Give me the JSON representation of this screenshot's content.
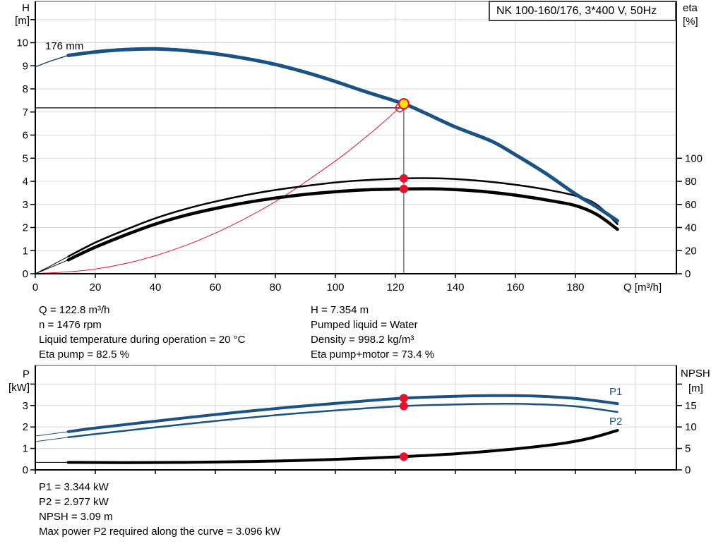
{
  "title_box": {
    "label": "NK 100-160/176, 3*400 V, 50Hz"
  },
  "info_top": {
    "left": [
      "Q = 122.8 m³/h",
      "n = 1476 rpm",
      "Liquid temperature during operation = 20 °C",
      "Eta pump = 82.5 %"
    ],
    "right": [
      "H = 7.354 m",
      "Pumped liquid = Water",
      "Density = 998.2 kg/m³",
      "Eta pump+motor = 73.4 %"
    ]
  },
  "info_bottom": [
    "P1 = 3.344 kW",
    "P2 = 2.977 kW",
    "NPSH = 3.09 m",
    "Max power P2 required along the curve = 3.096 kW"
  ],
  "colors": {
    "curve_blue": "#1b5286",
    "curve_black": "#000000",
    "curve_red": "#e8112d",
    "marker_red": "#e8112d",
    "marker_yellow": "#ffe100",
    "grid": "#d9d9d9",
    "axis": "#000000",
    "frame_top": "#a6a6a6",
    "duty_hline": "#000000",
    "duty_vline": "#555555"
  },
  "chart_data": [
    {
      "type": "line",
      "title": "NK 100-160/176, 3*400 V, 50Hz",
      "curve_label": "176 mm",
      "xlabel": "Q [m³/h]",
      "x_axis": {
        "ticks": [
          0,
          20,
          40,
          60,
          80,
          100,
          120,
          140,
          160,
          180,
          200
        ],
        "label_max": 180
      },
      "left_axis": {
        "label": "H",
        "unit": "[m]",
        "ticks": [
          0,
          1,
          2,
          3,
          4,
          5,
          6,
          7,
          8,
          9,
          10
        ],
        "unit_tick": 11,
        "range": [
          0,
          11.8
        ]
      },
      "right_axis": {
        "label": "eta",
        "unit": "[%]",
        "ticks": [
          0,
          20,
          40,
          60,
          80,
          100
        ]
      },
      "grid": true,
      "series": [
        {
          "name": "system-curve",
          "axis": "left",
          "color": "red",
          "width": 1,
          "points": [
            [
              0,
              0
            ],
            [
              20,
              0.2
            ],
            [
              40,
              0.78
            ],
            [
              60,
              1.76
            ],
            [
              80,
              3.12
            ],
            [
              100,
              4.88
            ],
            [
              110,
              5.9
            ],
            [
              116,
              6.56
            ],
            [
              122.8,
              7.354
            ]
          ]
        },
        {
          "name": "eta-pump-curve-thin",
          "axis": "right",
          "color": "black",
          "width": 1,
          "points": [
            [
              0,
              0
            ],
            [
              6,
              8
            ],
            [
              11,
              15
            ]
          ]
        },
        {
          "name": "eta-pump-motor-curve-thin",
          "axis": "right",
          "color": "black",
          "width": 1,
          "points": [
            [
              0,
              0
            ],
            [
              6,
              6.5
            ],
            [
              11,
              12
            ]
          ]
        },
        {
          "name": "eta-pump-curve",
          "axis": "right",
          "color": "black",
          "width": 2.5,
          "points": [
            [
              11,
              15
            ],
            [
              20,
              27
            ],
            [
              30,
              38
            ],
            [
              40,
              48
            ],
            [
              50,
              56
            ],
            [
              60,
              62.5
            ],
            [
              70,
              68
            ],
            [
              80,
              72.5
            ],
            [
              90,
              76
            ],
            [
              100,
              79
            ],
            [
              110,
              81
            ],
            [
              122.8,
              82.5
            ],
            [
              132,
              82.7
            ],
            [
              140,
              82
            ],
            [
              150,
              80
            ],
            [
              160,
              77
            ],
            [
              170,
              73
            ],
            [
              180,
              67.5
            ],
            [
              187,
              60
            ],
            [
              194,
              43
            ]
          ]
        },
        {
          "name": "eta-pump-motor-curve",
          "axis": "right",
          "color": "black",
          "width": 4.5,
          "points": [
            [
              11,
              12
            ],
            [
              20,
              23
            ],
            [
              30,
              33.5
            ],
            [
              40,
              43
            ],
            [
              50,
              50.5
            ],
            [
              60,
              56.5
            ],
            [
              70,
              61.5
            ],
            [
              80,
              65.5
            ],
            [
              90,
              68.7
            ],
            [
              100,
              71
            ],
            [
              110,
              72.6
            ],
            [
              122.8,
              73.4
            ],
            [
              132,
              73.5
            ],
            [
              140,
              72.8
            ],
            [
              150,
              71
            ],
            [
              160,
              68
            ],
            [
              170,
              64
            ],
            [
              180,
              59
            ],
            [
              187,
              51.5
            ],
            [
              194,
              38.5
            ]
          ]
        },
        {
          "name": "pump-curve-thin",
          "axis": "left",
          "color": "blue",
          "width": 1.5,
          "points": [
            [
              0,
              8.95
            ],
            [
              5,
              9.2
            ],
            [
              11,
              9.45
            ]
          ]
        },
        {
          "name": "pump-curve",
          "axis": "left",
          "color": "blue",
          "width": 5,
          "points": [
            [
              11,
              9.45
            ],
            [
              20,
              9.6
            ],
            [
              30,
              9.7
            ],
            [
              40,
              9.73
            ],
            [
              50,
              9.66
            ],
            [
              60,
              9.52
            ],
            [
              70,
              9.32
            ],
            [
              80,
              9.06
            ],
            [
              90,
              8.72
            ],
            [
              100,
              8.32
            ],
            [
              110,
              7.88
            ],
            [
              122.8,
              7.354
            ],
            [
              130,
              6.95
            ],
            [
              140,
              6.35
            ],
            [
              152,
              5.74
            ],
            [
              160,
              5.15
            ],
            [
              170,
              4.35
            ],
            [
              180,
              3.45
            ],
            [
              187,
              2.9
            ],
            [
              194,
              2.29
            ]
          ]
        }
      ],
      "duty_point": {
        "q": 122.8,
        "h": 7.354,
        "h_line_m": 7.18,
        "system_cross_q": 121.4
      },
      "eta_markers": [
        {
          "q": 122.8,
          "value": 82.5,
          "name": "eta-pump-marker"
        },
        {
          "q": 122.8,
          "value": 73.4,
          "name": "eta-pump-motor-marker"
        }
      ]
    },
    {
      "type": "line",
      "xlabel": "",
      "x_axis": {
        "ticks": [
          0,
          20,
          40,
          60,
          80,
          100,
          120,
          140,
          160,
          180,
          200
        ],
        "label_max": -1
      },
      "left_axis": {
        "label": "P",
        "unit": "[kW]",
        "ticks": [
          0,
          1,
          2,
          3
        ],
        "unit_tick": 4,
        "range": [
          0,
          4.87
        ]
      },
      "right_axis": {
        "label": "NPSH",
        "unit": "[m]",
        "ticks": [
          0,
          5,
          10,
          15
        ],
        "unit_tick": 20
      },
      "grid": true,
      "series_labels": {
        "p1": "P1",
        "p2": "P2"
      },
      "series": [
        {
          "name": "npsh-curve-thin",
          "axis": "right",
          "color": "black",
          "width": 1,
          "points": [
            [
              0,
              1.75
            ],
            [
              11,
              1.75
            ]
          ]
        },
        {
          "name": "npsh-curve",
          "axis": "right",
          "color": "black",
          "width": 4,
          "points": [
            [
              11,
              1.75
            ],
            [
              30,
              1.7
            ],
            [
              50,
              1.75
            ],
            [
              60,
              1.82
            ],
            [
              80,
              2.05
            ],
            [
              100,
              2.45
            ],
            [
              122.8,
              3.09
            ],
            [
              140,
              3.75
            ],
            [
              160,
              4.9
            ],
            [
              175,
              6.1
            ],
            [
              185,
              7.4
            ],
            [
              194,
              9.2
            ]
          ]
        },
        {
          "name": "p2-curve-thin",
          "axis": "left",
          "color": "blue",
          "width": 1,
          "points": [
            [
              0,
              1.32
            ],
            [
              11,
              1.52
            ]
          ]
        },
        {
          "name": "p2-curve",
          "axis": "left",
          "color": "blue",
          "width": 2.5,
          "points": [
            [
              11,
              1.52
            ],
            [
              20,
              1.67
            ],
            [
              40,
              1.98
            ],
            [
              60,
              2.28
            ],
            [
              80,
              2.55
            ],
            [
              100,
              2.77
            ],
            [
              122.8,
              2.977
            ],
            [
              140,
              3.05
            ],
            [
              152,
              3.08
            ],
            [
              165,
              3.07
            ],
            [
              180,
              2.96
            ],
            [
              194,
              2.7
            ]
          ]
        },
        {
          "name": "p1-curve-thin",
          "axis": "left",
          "color": "blue",
          "width": 1,
          "points": [
            [
              0,
              1.58
            ],
            [
              11,
              1.78
            ]
          ]
        },
        {
          "name": "p1-curve",
          "axis": "left",
          "color": "blue",
          "width": 4,
          "points": [
            [
              11,
              1.78
            ],
            [
              20,
              1.95
            ],
            [
              40,
              2.27
            ],
            [
              60,
              2.58
            ],
            [
              80,
              2.86
            ],
            [
              100,
              3.1
            ],
            [
              122.8,
              3.344
            ],
            [
              140,
              3.43
            ],
            [
              152,
              3.46
            ],
            [
              165,
              3.45
            ],
            [
              180,
              3.33
            ],
            [
              194,
              3.09
            ]
          ]
        }
      ],
      "markers": [
        {
          "q": 122.8,
          "axis": "left",
          "value": 3.344,
          "name": "p1-marker"
        },
        {
          "q": 122.8,
          "axis": "left",
          "value": 2.977,
          "name": "p2-marker"
        },
        {
          "q": 122.8,
          "axis": "right",
          "value": 3.09,
          "name": "npsh-marker"
        }
      ]
    }
  ]
}
